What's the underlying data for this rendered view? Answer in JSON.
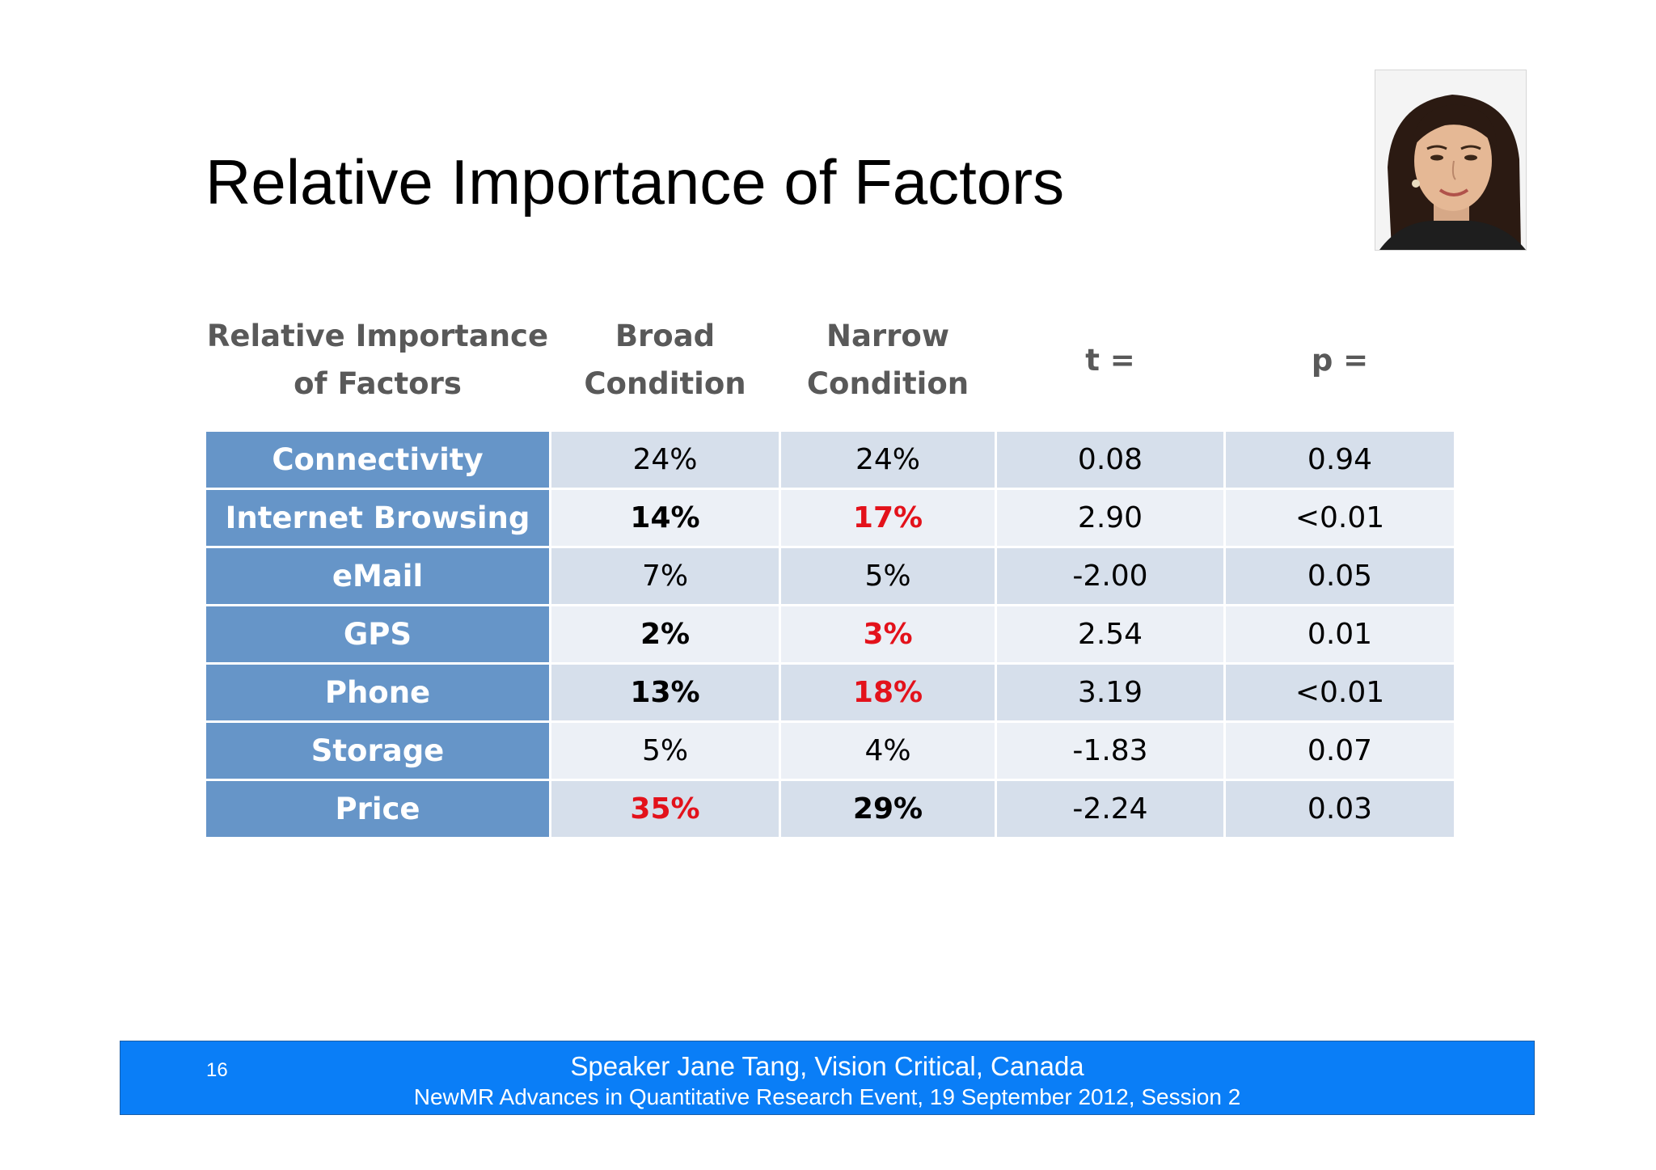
{
  "slide": {
    "title": "Relative Importance of Factors"
  },
  "table": {
    "headers": {
      "factor": "Relative Importance of Factors",
      "broad": "Broad Condition",
      "narrow": "Narrow Condition",
      "t": "t =",
      "p": "p ="
    },
    "rows": [
      {
        "factor": "Connectivity",
        "broad": "24%",
        "narrow": "24%",
        "t": "0.08",
        "p": "0.94"
      },
      {
        "factor": "Internet Browsing",
        "broad": "14%",
        "narrow": "17%",
        "t": "2.90",
        "p": "<0.01"
      },
      {
        "factor": "eMail",
        "broad": "7%",
        "narrow": "5%",
        "t": "-2.00",
        "p": "0.05"
      },
      {
        "factor": "GPS",
        "broad": "2%",
        "narrow": "3%",
        "t": "2.54",
        "p": "0.01"
      },
      {
        "factor": "Phone",
        "broad": "13%",
        "narrow": "18%",
        "t": "3.19",
        "p": "<0.01"
      },
      {
        "factor": "Storage",
        "broad": "5%",
        "narrow": "4%",
        "t": "-1.83",
        "p": "0.07"
      },
      {
        "factor": "Price",
        "broad": "35%",
        "narrow": "29%",
        "t": "-2.24",
        "p": "0.03"
      }
    ]
  },
  "footer": {
    "page_number": "16",
    "line1": "Speaker Jane Tang, Vision Critical, Canada",
    "line2": "NewMR Advances in Quantitative Research Event, 19 September 2012, Session 2"
  },
  "colors": {
    "factor_cell": "#6695c8",
    "highlight_red": "#e3121b",
    "footer_bar": "#0a7ef7"
  }
}
